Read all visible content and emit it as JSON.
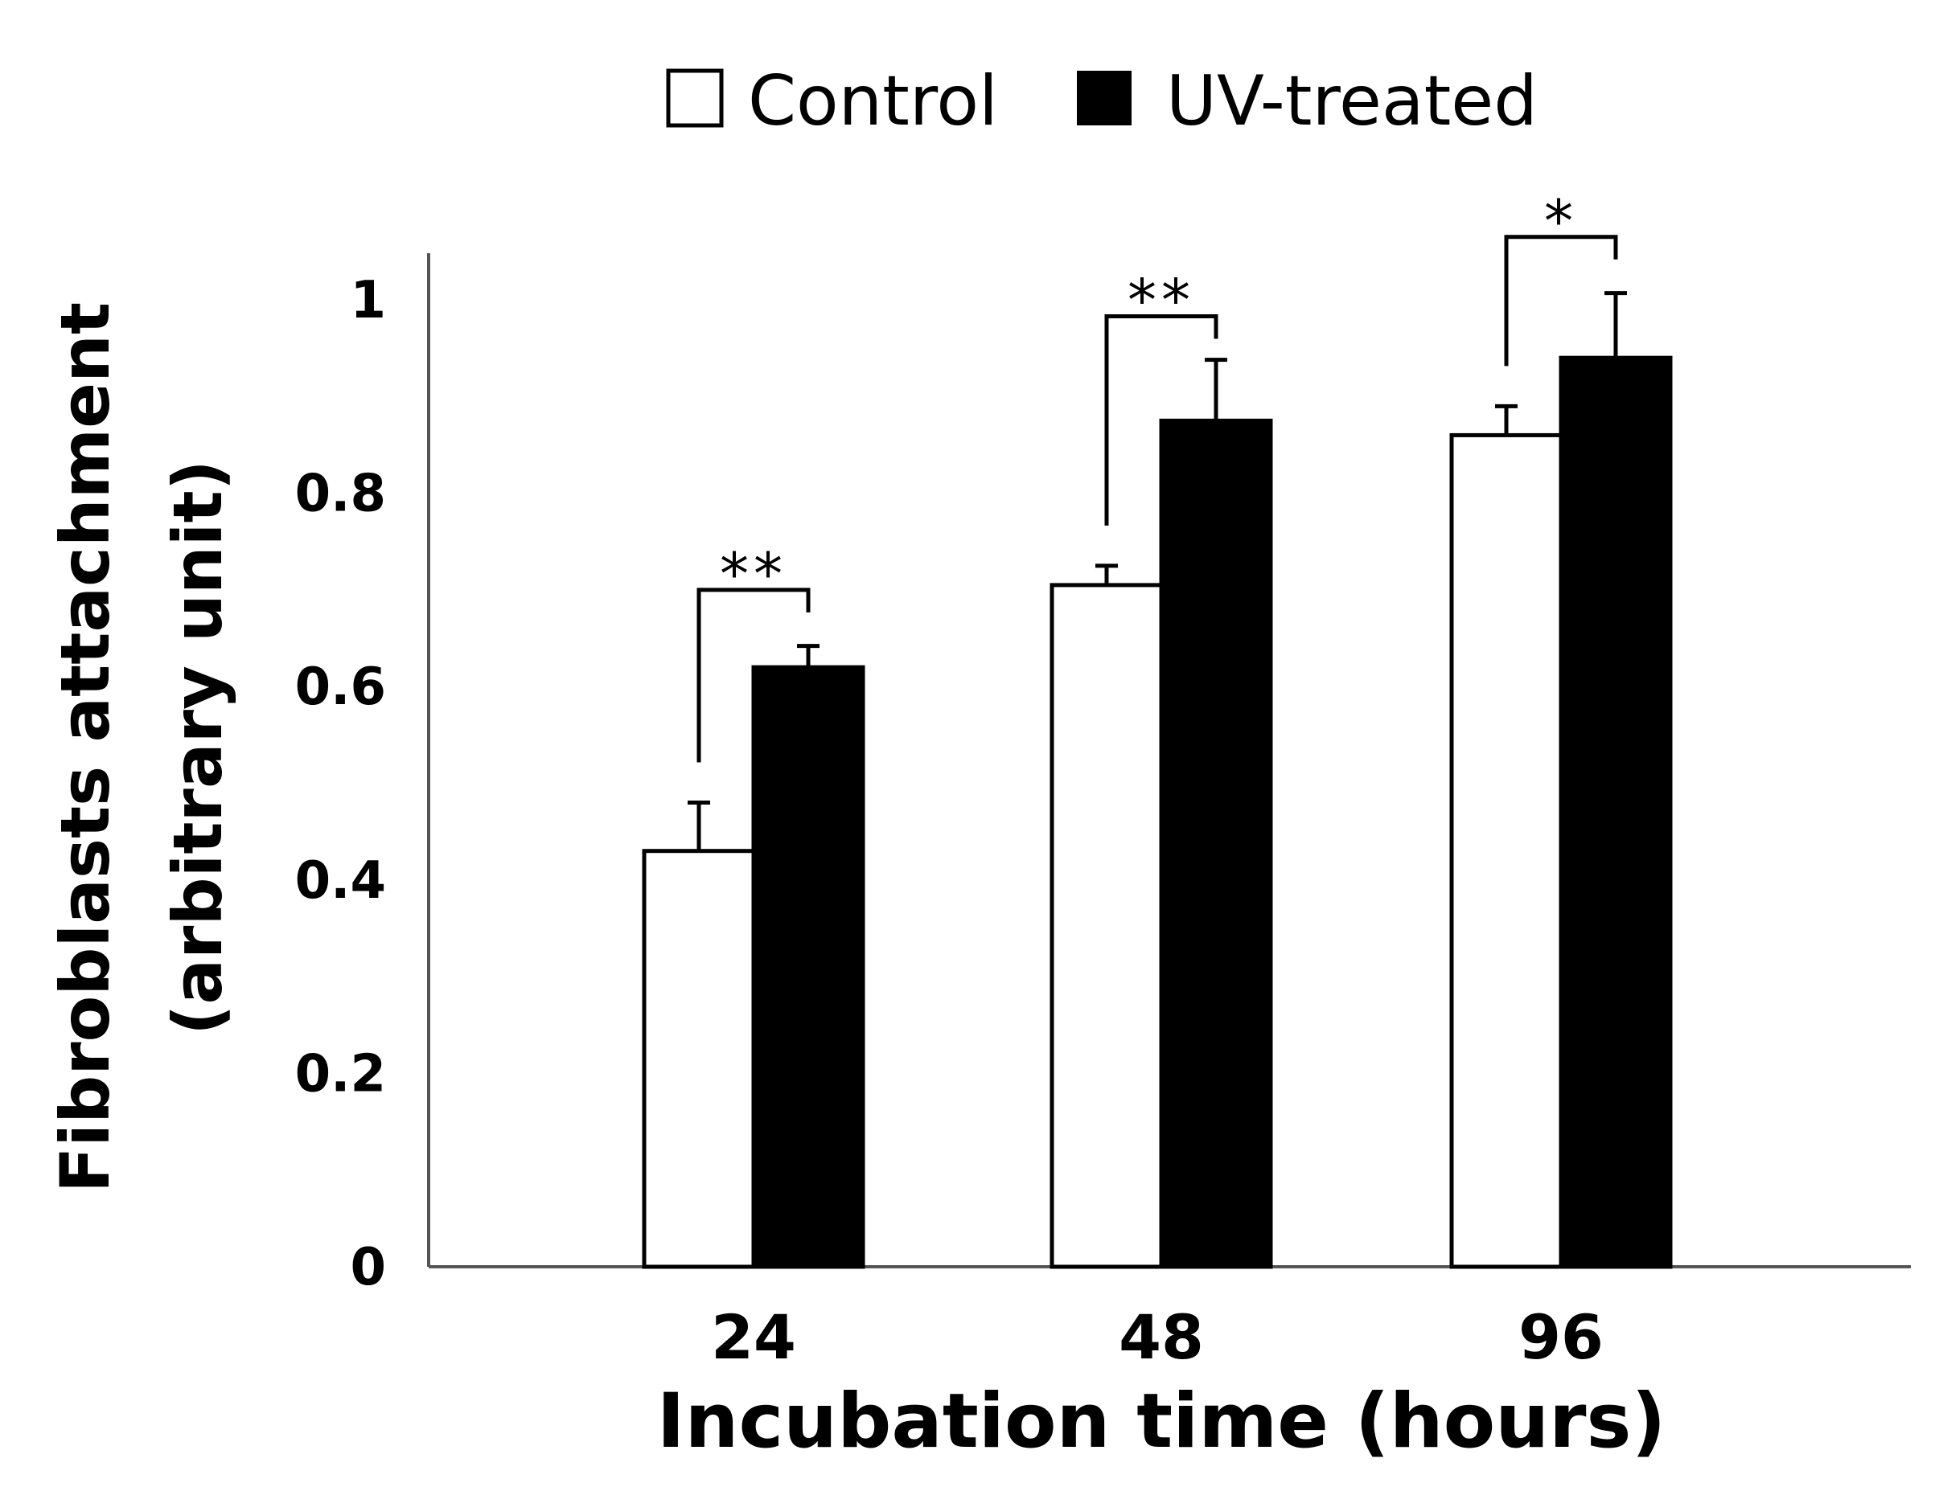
{
  "chart_data": {
    "type": "bar",
    "title": "",
    "xlabel": "Incubation time (hours)",
    "ylabel_lines": [
      "Fibroblasts attachment",
      "(arbitrary unit)"
    ],
    "categories": [
      "24",
      "48",
      "96"
    ],
    "ylim": [
      0,
      1
    ],
    "yticks": [
      "0",
      "0.2",
      "0.4",
      "0.6",
      "0.8",
      "1"
    ],
    "grid": false,
    "legend_placement": "top",
    "series": [
      {
        "name": "Control",
        "color": "#ffffff",
        "values": [
          0.43,
          0.705,
          0.86
        ],
        "errors": [
          0.05,
          0.02,
          0.03
        ]
      },
      {
        "name": "UV-treated",
        "color": "#000000",
        "values": [
          0.62,
          0.875,
          0.94
        ],
        "errors": [
          0.022,
          0.063,
          0.067
        ]
      }
    ],
    "significance": [
      "**",
      "**",
      "*"
    ]
  }
}
